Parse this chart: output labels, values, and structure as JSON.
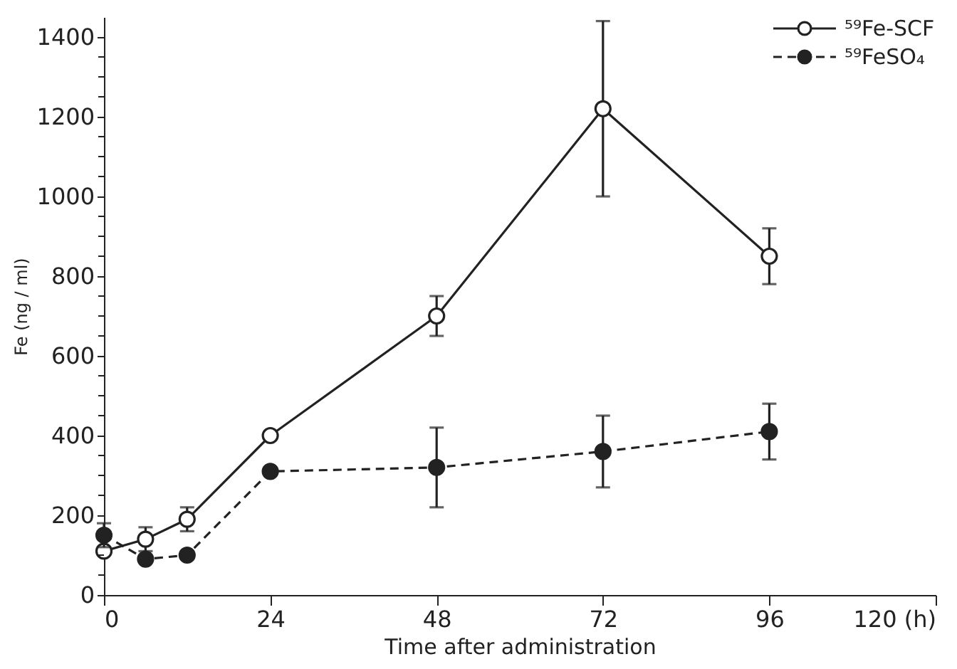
{
  "chart_data": {
    "type": "line",
    "xlabel": "Time after administration",
    "ylabel": "Fe (ng / ml)",
    "x": [
      0,
      6,
      12,
      24,
      48,
      72,
      96
    ],
    "series": [
      {
        "name": "⁵⁹Fe-SCF",
        "color": "#222222",
        "line_style": "solid",
        "values": [
          110,
          140,
          190,
          400,
          700,
          1220,
          850
        ],
        "errors": [
          null,
          30,
          30,
          null,
          50,
          220,
          70
        ]
      },
      {
        "name": "⁵⁹FeSO₄",
        "color": "#222222",
        "line_style": "dashed",
        "values": [
          150,
          90,
          100,
          310,
          320,
          360,
          410
        ],
        "errors": [
          30,
          null,
          null,
          null,
          100,
          90,
          70
        ]
      }
    ],
    "xlim": [
      0,
      120
    ],
    "xticks": [
      0,
      24,
      48,
      72,
      96,
      {
        "value": 120,
        "label": "120 (h)"
      }
    ],
    "ylim": [
      0,
      1450
    ],
    "yticks": [
      0,
      {
        "value": 50,
        "label": null
      },
      {
        "value": 100,
        "label": null
      },
      {
        "value": 150,
        "label": null
      },
      200,
      {
        "value": 250,
        "label": null
      },
      {
        "value": 300,
        "label": null
      },
      {
        "value": 350,
        "label": null
      },
      400,
      {
        "value": 450,
        "label": null
      },
      {
        "value": 500,
        "label": null
      },
      {
        "value": 550,
        "label": null
      },
      600,
      {
        "value": 650,
        "label": null
      },
      {
        "value": 700,
        "label": null
      },
      {
        "value": 750,
        "label": null
      },
      800,
      {
        "value": 850,
        "label": null
      },
      {
        "value": 900,
        "label": null
      },
      {
        "value": 950,
        "label": null
      },
      1000,
      {
        "value": 1050,
        "label": null
      },
      {
        "value": 1100,
        "label": null
      },
      {
        "value": 1150,
        "label": null
      },
      1200,
      {
        "value": 1250,
        "label": null
      },
      {
        "value": 1300,
        "label": null
      },
      {
        "value": 1350,
        "label": null
      },
      1400
    ],
    "grid": false,
    "legend": "top right",
    "marker": "circle"
  }
}
